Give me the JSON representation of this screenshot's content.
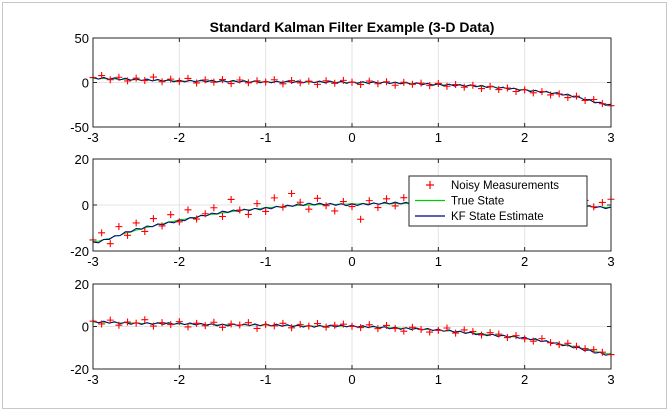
{
  "colors": {
    "measurement": "#ff0000",
    "true_state": "#00cc00",
    "estimate": "#000080",
    "axis": "#262626",
    "grid": "#e3e3e3"
  },
  "chart_data": [
    {
      "type": "line",
      "title": "Standard Kalman Filter Example (3-D Data)",
      "xlim": [
        -3,
        3
      ],
      "ylim": [
        -50,
        50
      ],
      "xticks": [
        -3,
        -2,
        -1,
        0,
        1,
        2,
        3
      ],
      "yticks": [
        -50,
        0,
        50
      ],
      "grid": true,
      "x_step": 0.025,
      "series": [
        {
          "kind": "measurement-markers",
          "marker": "+",
          "x": [
            -3.0,
            -2.9,
            -2.8,
            -2.7,
            -2.6,
            -2.5,
            -2.4,
            -2.3,
            -2.2,
            -2.1,
            -2.0,
            -1.9,
            -1.8,
            -1.7,
            -1.6,
            -1.5,
            -1.4,
            -1.3,
            -1.2,
            -1.1,
            -1.0,
            -0.9,
            -0.8,
            -0.7,
            -0.6,
            -0.5,
            -0.4,
            -0.3,
            -0.2,
            -0.1,
            0.0,
            0.1,
            0.2,
            0.3,
            0.4,
            0.5,
            0.6,
            0.7,
            0.8,
            0.9,
            1.0,
            1.1,
            1.2,
            1.3,
            1.4,
            1.5,
            1.6,
            1.7,
            1.8,
            1.9,
            2.0,
            2.1,
            2.2,
            2.3,
            2.4,
            2.5,
            2.6,
            2.7,
            2.8,
            2.9,
            3.0
          ],
          "values": [
            5.5,
            7.8,
            3.1,
            5.9,
            1.8,
            4.9,
            2.2,
            6.1,
            0.9,
            3.8,
            1.2,
            4.6,
            -0.5,
            2.9,
            0.4,
            3.3,
            -1.2,
            2.8,
            -0.3,
            1.9,
            0.6,
            3.1,
            -1.5,
            2.2,
            -0.4,
            1.5,
            -2.1,
            1.9,
            -0.9,
            2.4,
            0.3,
            -2.2,
            1.6,
            -1.4,
            0.8,
            -3.1,
            0.2,
            -2.0,
            -0.7,
            -3.5,
            -1.1,
            -4.2,
            -2.3,
            -5.3,
            -3.1,
            -6.8,
            -4.4,
            -7.9,
            -6.2,
            -10.1,
            -8.3,
            -11.6,
            -10.2,
            -14.0,
            -12.8,
            -16.9,
            -15.3,
            -20.2,
            -19.1,
            -23.8,
            -26.0
          ]
        },
        {
          "kind": "true-state-line",
          "x": [
            -3.0,
            -2.5,
            -2.0,
            -1.5,
            -1.0,
            -0.5,
            0.0,
            0.5,
            1.0,
            1.5,
            2.0,
            2.5,
            3.0
          ],
          "values": [
            4.5,
            3.0,
            2.0,
            1.2,
            0.8,
            0.5,
            0.2,
            -0.6,
            -2.2,
            -4.5,
            -8.2,
            -14.5,
            -25.0
          ]
        },
        {
          "kind": "estimate-line",
          "x": [
            -3.0,
            -2.5,
            -2.0,
            -1.5,
            -1.0,
            -0.5,
            0.0,
            0.5,
            1.0,
            1.5,
            2.0,
            2.5,
            3.0
          ],
          "values": [
            5.0,
            3.4,
            1.7,
            1.5,
            0.6,
            0.8,
            0.0,
            -0.4,
            -2.5,
            -4.2,
            -8.6,
            -14.1,
            -25.5
          ]
        }
      ]
    },
    {
      "type": "line",
      "xlim": [
        -3,
        3
      ],
      "ylim": [
        -20,
        20
      ],
      "xticks": [
        -3,
        -2,
        -1,
        0,
        1,
        2,
        3
      ],
      "yticks": [
        -20,
        0,
        20
      ],
      "grid": true,
      "legend_position": "top-right",
      "series": [
        {
          "name": "Noisy Measurements",
          "kind": "measurement-markers",
          "marker": "+",
          "x": [
            -3.0,
            -2.9,
            -2.8,
            -2.7,
            -2.6,
            -2.5,
            -2.4,
            -2.3,
            -2.2,
            -2.1,
            -2.0,
            -1.9,
            -1.8,
            -1.7,
            -1.6,
            -1.5,
            -1.4,
            -1.3,
            -1.2,
            -1.1,
            -1.0,
            -0.9,
            -0.8,
            -0.7,
            -0.6,
            -0.5,
            -0.4,
            -0.3,
            -0.2,
            -0.1,
            0.0,
            0.1,
            0.2,
            0.3,
            0.4,
            0.5,
            0.6,
            0.7,
            0.8,
            0.9,
            1.0,
            1.1,
            1.2,
            1.3,
            1.4,
            1.5,
            1.6,
            1.7,
            1.8,
            1.9,
            2.0,
            2.1,
            2.2,
            2.3,
            2.4,
            2.5,
            2.6,
            2.7,
            2.8,
            2.9,
            3.0
          ],
          "values": [
            -15.2,
            -12.1,
            -16.8,
            -9.4,
            -13.2,
            -7.8,
            -11.5,
            -5.9,
            -9.1,
            -4.2,
            -7.3,
            -2.1,
            -6.1,
            -3.8,
            -1.2,
            -5.0,
            2.4,
            -2.2,
            -4.1,
            0.6,
            -2.8,
            3.1,
            -0.9,
            5.0,
            1.2,
            -1.8,
            2.9,
            -0.3,
            -2.6,
            1.5,
            -0.7,
            -6.2,
            1.9,
            -1.1,
            2.7,
            -0.4,
            3.2,
            0.9,
            2.2,
            4.1,
            1.6,
            2.9,
            0.5,
            3.4,
            1.4,
            2.6,
            0.8,
            3.3,
            1.0,
            2.5,
            -0.2,
            2.9,
            0.6,
            1.7,
            -0.9,
            1.3,
            -1.6,
            2.0,
            -0.8,
            1.1,
            2.5
          ]
        },
        {
          "name": "True State",
          "kind": "true-state-line",
          "x": [
            -3.0,
            -2.5,
            -2.0,
            -1.5,
            -1.0,
            -0.5,
            0.0,
            0.5,
            1.0,
            1.5,
            2.0,
            2.5,
            3.0
          ],
          "values": [
            -16.0,
            -11.0,
            -6.5,
            -3.5,
            -1.2,
            0.0,
            0.5,
            0.6,
            0.5,
            0.4,
            0.2,
            -0.3,
            -1.0
          ]
        },
        {
          "name": "KF State Estimate",
          "kind": "estimate-line",
          "x": [
            -3.0,
            -2.5,
            -2.0,
            -1.5,
            -1.0,
            -0.5,
            0.0,
            0.5,
            1.0,
            1.5,
            2.0,
            2.5,
            3.0
          ],
          "values": [
            -16.5,
            -10.6,
            -6.9,
            -3.1,
            -1.5,
            0.4,
            0.1,
            0.9,
            0.2,
            0.7,
            -0.1,
            0.0,
            -1.3
          ]
        }
      ]
    },
    {
      "type": "line",
      "xlim": [
        -3,
        3
      ],
      "ylim": [
        -20,
        20
      ],
      "xticks": [
        -3,
        -2,
        -1,
        0,
        1,
        2,
        3
      ],
      "yticks": [
        -20,
        0,
        20
      ],
      "grid": true,
      "series": [
        {
          "kind": "measurement-markers",
          "marker": "+",
          "x": [
            -3.0,
            -2.9,
            -2.8,
            -2.7,
            -2.6,
            -2.5,
            -2.4,
            -2.3,
            -2.2,
            -2.1,
            -2.0,
            -1.9,
            -1.8,
            -1.7,
            -1.6,
            -1.5,
            -1.4,
            -1.3,
            -1.2,
            -1.1,
            -1.0,
            -0.9,
            -0.8,
            -0.7,
            -0.6,
            -0.5,
            -0.4,
            -0.3,
            -0.2,
            -0.1,
            0.0,
            0.1,
            0.2,
            0.3,
            0.4,
            0.5,
            0.6,
            0.7,
            0.8,
            0.9,
            1.0,
            1.1,
            1.2,
            1.3,
            1.4,
            1.5,
            1.6,
            1.7,
            1.8,
            1.9,
            2.0,
            2.1,
            2.2,
            2.3,
            2.4,
            2.5,
            2.6,
            2.7,
            2.8,
            2.9,
            3.0
          ],
          "values": [
            2.5,
            1.2,
            3.0,
            0.6,
            2.1,
            1.6,
            3.2,
            0.2,
            1.8,
            0.9,
            2.3,
            -0.2,
            1.5,
            0.4,
            2.0,
            -0.4,
            1.2,
            0.7,
            1.8,
            -0.9,
            0.9,
            0.3,
            1.5,
            -0.6,
            1.0,
            0.2,
            1.4,
            -0.3,
            0.6,
            1.1,
            0.1,
            -0.5,
            0.8,
            -1.0,
            0.5,
            -0.9,
            -2.2,
            -0.4,
            -1.4,
            -2.6,
            -1.8,
            -0.7,
            -3.1,
            -1.6,
            -2.4,
            -4.0,
            -2.9,
            -3.6,
            -5.2,
            -4.3,
            -5.8,
            -6.9,
            -5.7,
            -7.6,
            -8.5,
            -7.9,
            -9.3,
            -10.4,
            -10.9,
            -12.1,
            -13.2
          ]
        },
        {
          "kind": "true-state-line",
          "x": [
            -3.0,
            -2.5,
            -2.0,
            -1.5,
            -1.0,
            -0.5,
            0.0,
            0.5,
            1.0,
            1.5,
            2.0,
            2.5,
            3.0
          ],
          "values": [
            2.0,
            1.6,
            1.2,
            0.9,
            0.6,
            0.3,
            0.0,
            -0.6,
            -1.8,
            -3.4,
            -5.6,
            -8.8,
            -13.0
          ]
        },
        {
          "kind": "estimate-line",
          "x": [
            -3.0,
            -2.5,
            -2.0,
            -1.5,
            -1.0,
            -0.5,
            0.0,
            0.5,
            1.0,
            1.5,
            2.0,
            2.5,
            3.0
          ],
          "values": [
            2.3,
            1.4,
            1.4,
            0.7,
            0.8,
            0.1,
            0.2,
            -0.8,
            -1.6,
            -3.7,
            -5.4,
            -9.1,
            -13.4
          ]
        }
      ]
    }
  ]
}
